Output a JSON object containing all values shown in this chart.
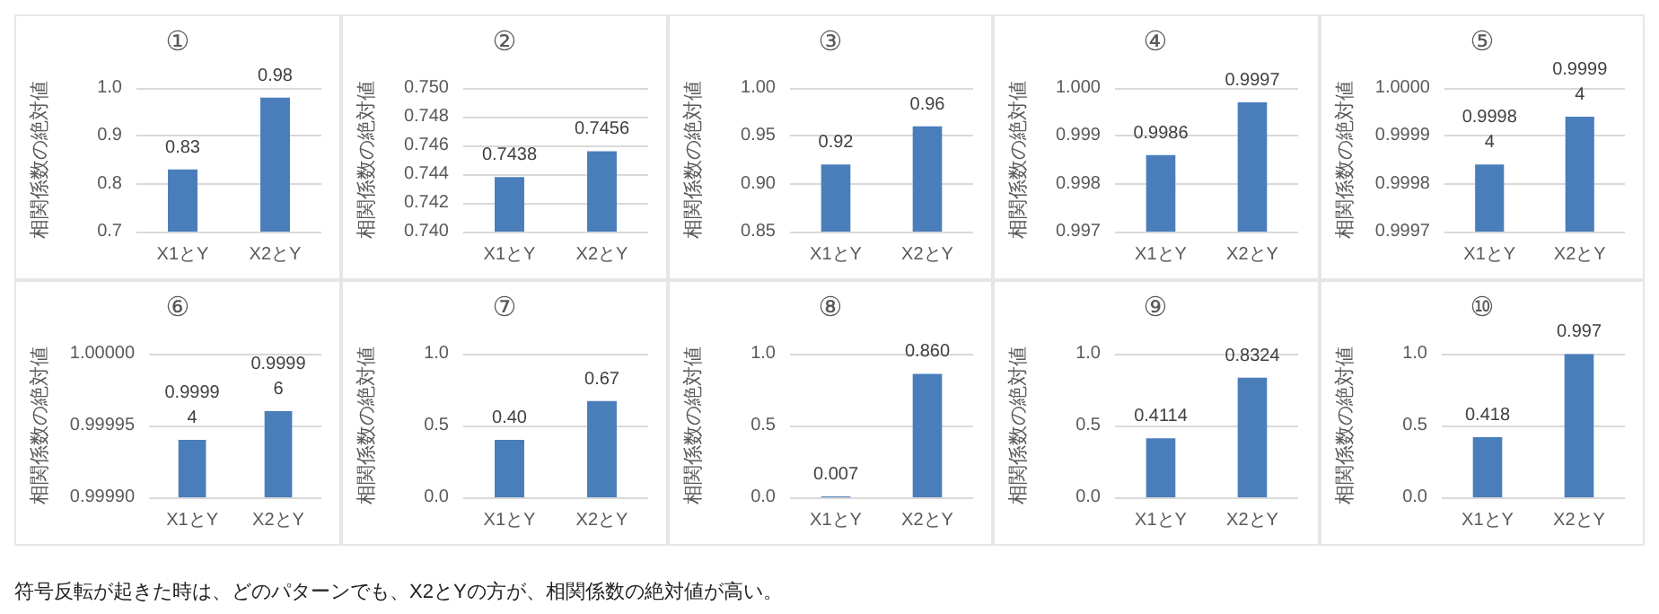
{
  "chart_data": [
    {
      "type": "bar",
      "title": "①",
      "ylabel": "相関係数の絶対値",
      "categories": [
        "X1とY",
        "X2とY"
      ],
      "values": [
        0.83,
        0.98
      ],
      "value_labels": [
        "0.83",
        "0.98"
      ],
      "color": "#4a7ebb",
      "ylim": [
        0.7,
        1.0
      ],
      "yticks": [
        0.7,
        0.8,
        0.9,
        {
          "value": 1.0,
          "label": "1.0"
        }
      ],
      "grid": "y"
    },
    {
      "type": "bar",
      "title": "②",
      "ylabel": "相関係数の絶対値",
      "categories": [
        "X1とY",
        "X2とY"
      ],
      "values": [
        0.7438,
        0.7456
      ],
      "value_labels": [
        "0.7438",
        "0.7456"
      ],
      "color": "#4a7ebb",
      "ylim": [
        0.74,
        0.75
      ],
      "yticks": [
        {
          "value": 0.74,
          "label": "0.740"
        },
        0.742,
        0.744,
        0.746,
        0.748,
        {
          "value": 0.75,
          "label": "0.750"
        }
      ],
      "grid": "y"
    },
    {
      "type": "bar",
      "title": "③",
      "ylabel": "相関係数の絶対値",
      "categories": [
        "X1とY",
        "X2とY"
      ],
      "values": [
        0.92,
        0.96
      ],
      "value_labels": [
        "0.92",
        "0.96"
      ],
      "color": "#4a7ebb",
      "ylim": [
        0.85,
        1.0
      ],
      "yticks": [
        0.85,
        {
          "value": 0.9,
          "label": "0.90"
        },
        0.95,
        {
          "value": 1.0,
          "label": "1.00"
        }
      ],
      "grid": "y"
    },
    {
      "type": "bar",
      "title": "④",
      "ylabel": "相関係数の絶対値",
      "categories": [
        "X1とY",
        "X2とY"
      ],
      "values": [
        0.9986,
        0.9997
      ],
      "value_labels": [
        "0.9986",
        "0.9997"
      ],
      "color": "#4a7ebb",
      "ylim": [
        0.997,
        1.0
      ],
      "yticks": [
        0.997,
        0.998,
        0.999,
        {
          "value": 1.0,
          "label": "1.000"
        }
      ],
      "grid": "y"
    },
    {
      "type": "bar",
      "title": "⑤",
      "ylabel": "相関係数の絶対値",
      "categories": [
        "X1とY",
        "X2とY"
      ],
      "values": [
        0.99984,
        0.99994
      ],
      "value_labels": [
        "0.99984",
        "0.99994"
      ],
      "color": "#4a7ebb",
      "ylim": [
        0.9997,
        1.0
      ],
      "yticks": [
        0.9997,
        0.9998,
        0.9999,
        {
          "value": 1.0,
          "label": "1.0000"
        }
      ],
      "grid": "y"
    },
    {
      "type": "bar",
      "title": "⑥",
      "ylabel": "相関係数の絶対値",
      "categories": [
        "X1とY",
        "X2とY"
      ],
      "values": [
        0.99994,
        0.99996
      ],
      "value_labels": [
        "0.99994",
        "0.99996"
      ],
      "color": "#4a7ebb",
      "ylim": [
        0.9999,
        1.0
      ],
      "yticks": [
        {
          "value": 0.9999,
          "label": "0.99990"
        },
        0.99995,
        {
          "value": 1.0,
          "label": "1.00000"
        }
      ],
      "grid": "y"
    },
    {
      "type": "bar",
      "title": "⑦",
      "ylabel": "相関係数の絶対値",
      "categories": [
        "X1とY",
        "X2とY"
      ],
      "values": [
        0.4,
        0.67
      ],
      "value_labels": [
        "0.40",
        "0.67"
      ],
      "color": "#4a7ebb",
      "ylim": [
        0,
        1.0
      ],
      "yticks": [
        {
          "value": 0,
          "label": "0.0"
        },
        0.5,
        {
          "value": 1.0,
          "label": "1.0"
        }
      ],
      "grid": "y"
    },
    {
      "type": "bar",
      "title": "⑧",
      "ylabel": "相関係数の絶対値",
      "categories": [
        "X1とY",
        "X2とY"
      ],
      "values": [
        0.007,
        0.86
      ],
      "value_labels": [
        "0.007",
        "0.860"
      ],
      "color": "#4a7ebb",
      "ylim": [
        0,
        1.0
      ],
      "yticks": [
        {
          "value": 0,
          "label": "0.0"
        },
        0.5,
        {
          "value": 1.0,
          "label": "1.0"
        }
      ],
      "grid": "y"
    },
    {
      "type": "bar",
      "title": "⑨",
      "ylabel": "相関係数の絶対値",
      "categories": [
        "X1とY",
        "X2とY"
      ],
      "values": [
        0.4114,
        0.8324
      ],
      "value_labels": [
        "0.4114",
        "0.8324"
      ],
      "color": "#4a7ebb",
      "ylim": [
        0,
        1.0
      ],
      "yticks": [
        {
          "value": 0,
          "label": "0.0"
        },
        0.5,
        {
          "value": 1.0,
          "label": "1.0"
        }
      ],
      "grid": "y"
    },
    {
      "type": "bar",
      "title": "⑩",
      "ylabel": "相関係数の絶対値",
      "categories": [
        "X1とY",
        "X2とY"
      ],
      "values": [
        0.418,
        0.997
      ],
      "value_labels": [
        "0.418",
        "0.997"
      ],
      "color": "#4a7ebb",
      "ylim": [
        0,
        1.0
      ],
      "yticks": [
        {
          "value": 0,
          "label": "0.0"
        },
        0.5,
        {
          "value": 1.0,
          "label": "1.0"
        }
      ],
      "grid": "y",
      "annotations": [
        "符号反転が起きた時は、どのパターンでも、X2とYの方が、相関係数の絶対値が高い。"
      ]
    }
  ]
}
